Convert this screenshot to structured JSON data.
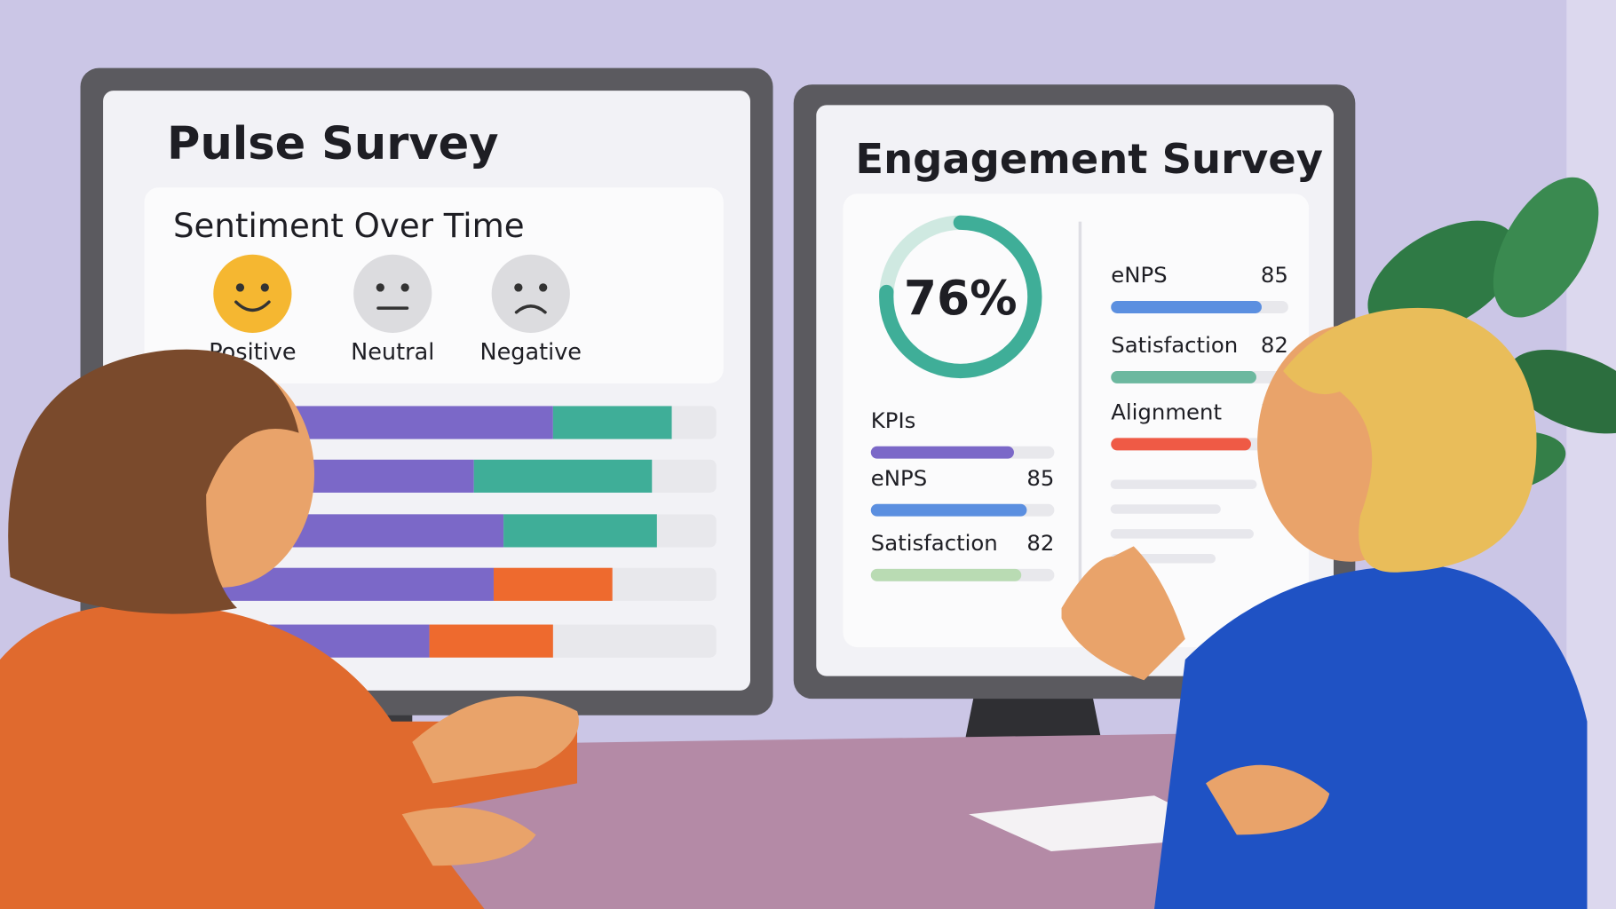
{
  "pulse": {
    "title": "Pulse Survey",
    "subtitle": "Sentiment Over Time",
    "legend": [
      {
        "name": "Positive",
        "color": "#f5b731"
      },
      {
        "name": "Neutral",
        "color": "#dcdcdf"
      },
      {
        "name": "Negative",
        "color": "#dcdcdf"
      }
    ],
    "xlim": [
      0,
      100
    ],
    "bars": [
      {
        "segments": [
          {
            "color": "#7b68c8",
            "value": 67
          },
          {
            "color": "#3fae98",
            "value": 24
          }
        ]
      },
      {
        "segments": [
          {
            "color": "#7b68c8",
            "value": 51
          },
          {
            "color": "#3fae98",
            "value": 36
          }
        ]
      },
      {
        "segments": [
          {
            "color": "#7b68c8",
            "value": 57
          },
          {
            "color": "#3fae98",
            "value": 31
          }
        ]
      },
      {
        "segments": [
          {
            "color": "#7b68c8",
            "value": 55
          },
          {
            "color": "#ee6a2e",
            "value": 24
          }
        ]
      },
      {
        "segments": [
          {
            "color": "#7b68c8",
            "value": 42
          },
          {
            "color": "#ee6a2e",
            "value": 25
          }
        ]
      }
    ]
  },
  "engagement": {
    "title": "Engagement Survey",
    "score": {
      "value": 76,
      "label": "76%"
    },
    "score_color": "#3fae98",
    "xlim": [
      0,
      100
    ],
    "left_metrics": [
      {
        "name": "KPIs",
        "bar": 78,
        "color": "#7b68c8"
      },
      {
        "name": "eNPS",
        "value": 85,
        "color": "#5b8fe0"
      },
      {
        "name": "Satisfaction",
        "value": 82,
        "color": "#b9dbb3"
      }
    ],
    "right_metrics": [
      {
        "name": "eNPS",
        "value": 85,
        "color": "#5b8fe0"
      },
      {
        "name": "Satisfaction",
        "value": 82,
        "color": "#6cb89f"
      },
      {
        "name": "Alignment",
        "value": 79,
        "color": "#ef5a45"
      }
    ]
  }
}
